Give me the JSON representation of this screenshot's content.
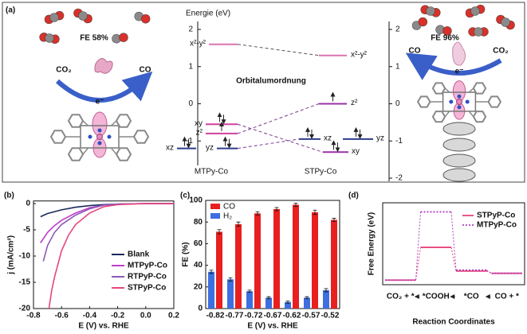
{
  "chart_data": [
    {
      "type": "energy-levels",
      "panel": "(a)",
      "ylabel": "Energie (eV)",
      "title": "Orbitalumordnung",
      "ylim": [
        -2.1,
        2.2
      ],
      "yticks": [
        2,
        1,
        0,
        -1
      ],
      "y2lim": [
        -2.1,
        2.2
      ],
      "y2ticks": [
        2,
        1,
        0,
        -1,
        -2
      ],
      "groups": [
        {
          "name": "MTPy-Co",
          "levels": [
            {
              "label": "x²-y²",
              "energy": 1.6,
              "electrons": 0,
              "color": "#d873b0"
            },
            {
              "label": "xy",
              "energy": -0.55,
              "electrons": 2,
              "color": "#d0409a"
            },
            {
              "label": "z²",
              "energy": -0.8,
              "electrons": 1,
              "color": "#d0409a"
            },
            {
              "label": "xz",
              "energy": -1.2,
              "electrons": 2,
              "color": "#2b3b8c"
            },
            {
              "label": "yz",
              "energy": -1.2,
              "electrons": 2,
              "color": "#2b3b8c"
            }
          ]
        },
        {
          "name": "STPy-Co",
          "levels": [
            {
              "label": "x²-y²",
              "energy": 1.3,
              "electrons": 0,
              "color": "#d873b0"
            },
            {
              "label": "z²",
              "energy": 0,
              "electrons": 1,
              "color": "#9a30a8"
            },
            {
              "label": "xz",
              "energy": -0.95,
              "electrons": 2,
              "color": "#2b3b8c"
            },
            {
              "label": "yz",
              "energy": -0.95,
              "electrons": 2,
              "color": "#2b3b8c"
            },
            {
              "label": "xy",
              "energy": -1.3,
              "electrons": 2,
              "color": "#9a30a8"
            }
          ]
        }
      ],
      "left": {
        "fe": "FE 58%",
        "reactant": "CO₂",
        "product": "CO",
        "electron": "e⁻"
      },
      "right": {
        "fe": "FE 96%",
        "reactant": "CO₂",
        "product": "CO",
        "electron": "e⁻"
      }
    },
    {
      "type": "line",
      "panel": "(b)",
      "xlabel": "E (V) vs. RHE",
      "ylabel": "j (mA/cm²)",
      "xlim": [
        -0.8,
        0.2
      ],
      "ylim": [
        -20,
        0.5
      ],
      "xticks": [
        -0.8,
        -0.6,
        -0.4,
        -0.2,
        {
          "value": 0,
          "label": "0.0"
        },
        0.2
      ],
      "yticks": [
        0,
        -5,
        -10,
        -15,
        -20
      ],
      "legend": "lower right",
      "series": [
        {
          "name": "Blank",
          "color": "#1a2a5c",
          "x": [
            -0.75,
            -0.7,
            -0.6,
            -0.5,
            -0.4,
            -0.3,
            -0.2,
            0,
            0.2
          ],
          "values": [
            -2.5,
            -1.9,
            -1.2,
            -0.7,
            -0.4,
            -0.2,
            -0.1,
            0,
            0
          ]
        },
        {
          "name": "MTPyP-Co",
          "color": "#c23bc9",
          "x": [
            -0.75,
            -0.7,
            -0.65,
            -0.6,
            -0.5,
            -0.4,
            -0.3,
            -0.2,
            0,
            0.2
          ],
          "values": [
            -7.5,
            -5.5,
            -4.2,
            -3.2,
            -1.8,
            -0.8,
            -0.3,
            -0.1,
            0,
            0
          ]
        },
        {
          "name": "RTPyP-Co",
          "color": "#8a5ab8",
          "x": [
            -0.73,
            -0.7,
            -0.65,
            -0.6,
            -0.5,
            -0.4,
            -0.3,
            -0.2,
            0,
            0.2
          ],
          "values": [
            -11,
            -8,
            -5.5,
            -4,
            -2.2,
            -1,
            -0.3,
            -0.1,
            0,
            0
          ]
        },
        {
          "name": "STPyP-Co",
          "color": "#e8457c",
          "x": [
            -0.69,
            -0.67,
            -0.65,
            -0.6,
            -0.55,
            -0.5,
            -0.4,
            -0.3,
            -0.2,
            0,
            0.2
          ],
          "values": [
            -20,
            -16.5,
            -14,
            -9,
            -6,
            -4,
            -1.8,
            -0.6,
            -0.2,
            0,
            0
          ]
        }
      ]
    },
    {
      "type": "bar",
      "panel": "(c)",
      "xlabel": "E (V) vs. RHE",
      "ylabel": "FE (%)",
      "categories": [
        "-0.82",
        "-0.77",
        "-0.72",
        "-0.67",
        "-0.62",
        "-0.57",
        "-0.52"
      ],
      "ylim": [
        0,
        100
      ],
      "yticks": [
        0,
        20,
        40,
        60,
        80,
        100
      ],
      "legend": "upper left",
      "series": [
        {
          "name": "CO",
          "color": "#e82020",
          "values": [
            71,
            78,
            88,
            92,
            96,
            89,
            82
          ],
          "errors": [
            2,
            2,
            1.5,
            1.5,
            1.5,
            2,
            1.5
          ]
        },
        {
          "name": "H₂",
          "color": "#3d6fe0",
          "values": [
            34,
            27,
            16,
            10,
            6,
            10,
            17
          ],
          "errors": [
            1.5,
            1.5,
            1,
            1,
            1,
            1,
            1.5
          ]
        }
      ]
    },
    {
      "type": "step",
      "panel": "(d)",
      "xlabel": "Reaction Coordinates",
      "ylabel": "Free Energy (eV)",
      "categories": [
        "CO₂ + *",
        "*COOH",
        "*CO",
        "CO + *"
      ],
      "ylim": [
        -0.1,
        1.7
      ],
      "legend": "upper right",
      "series": [
        {
          "name": "STPyP-Co",
          "color": "#e8457c",
          "line_style": "solid",
          "values": [
            0,
            0.72,
            0.2,
            0.15
          ]
        },
        {
          "name": "MTPyP-Co",
          "color": "#b040c0",
          "line_style": "dotted",
          "values": [
            0,
            1.5,
            0.22,
            0.15
          ]
        }
      ]
    }
  ]
}
